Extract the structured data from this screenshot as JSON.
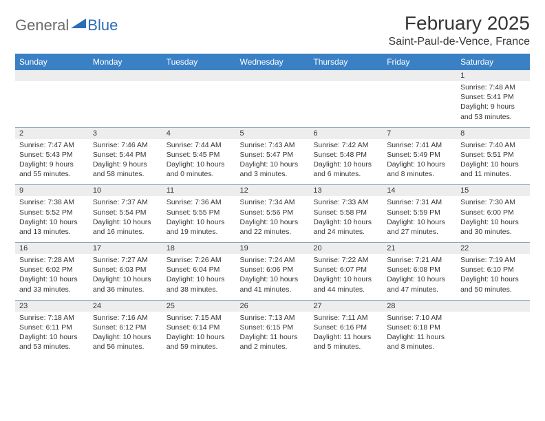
{
  "logo": {
    "general": "General",
    "blue": "Blue"
  },
  "title": "February 2025",
  "location": "Saint-Paul-de-Vence, France",
  "colors": {
    "header_bg": "#3a80c5",
    "header_text": "#ffffff",
    "dayhead_bg": "#ededed",
    "border": "#8aa5bd",
    "text": "#363636",
    "logo_gray": "#6b6b6b",
    "logo_blue": "#2a6db8"
  },
  "dayNames": [
    "Sunday",
    "Monday",
    "Tuesday",
    "Wednesday",
    "Thursday",
    "Friday",
    "Saturday"
  ],
  "weeks": [
    [
      {
        "n": "",
        "lines": []
      },
      {
        "n": "",
        "lines": []
      },
      {
        "n": "",
        "lines": []
      },
      {
        "n": "",
        "lines": []
      },
      {
        "n": "",
        "lines": []
      },
      {
        "n": "",
        "lines": []
      },
      {
        "n": "1",
        "lines": [
          "Sunrise: 7:48 AM",
          "Sunset: 5:41 PM",
          "Daylight: 9 hours and 53 minutes."
        ]
      }
    ],
    [
      {
        "n": "2",
        "lines": [
          "Sunrise: 7:47 AM",
          "Sunset: 5:43 PM",
          "Daylight: 9 hours and 55 minutes."
        ]
      },
      {
        "n": "3",
        "lines": [
          "Sunrise: 7:46 AM",
          "Sunset: 5:44 PM",
          "Daylight: 9 hours and 58 minutes."
        ]
      },
      {
        "n": "4",
        "lines": [
          "Sunrise: 7:44 AM",
          "Sunset: 5:45 PM",
          "Daylight: 10 hours and 0 minutes."
        ]
      },
      {
        "n": "5",
        "lines": [
          "Sunrise: 7:43 AM",
          "Sunset: 5:47 PM",
          "Daylight: 10 hours and 3 minutes."
        ]
      },
      {
        "n": "6",
        "lines": [
          "Sunrise: 7:42 AM",
          "Sunset: 5:48 PM",
          "Daylight: 10 hours and 6 minutes."
        ]
      },
      {
        "n": "7",
        "lines": [
          "Sunrise: 7:41 AM",
          "Sunset: 5:49 PM",
          "Daylight: 10 hours and 8 minutes."
        ]
      },
      {
        "n": "8",
        "lines": [
          "Sunrise: 7:40 AM",
          "Sunset: 5:51 PM",
          "Daylight: 10 hours and 11 minutes."
        ]
      }
    ],
    [
      {
        "n": "9",
        "lines": [
          "Sunrise: 7:38 AM",
          "Sunset: 5:52 PM",
          "Daylight: 10 hours and 13 minutes."
        ]
      },
      {
        "n": "10",
        "lines": [
          "Sunrise: 7:37 AM",
          "Sunset: 5:54 PM",
          "Daylight: 10 hours and 16 minutes."
        ]
      },
      {
        "n": "11",
        "lines": [
          "Sunrise: 7:36 AM",
          "Sunset: 5:55 PM",
          "Daylight: 10 hours and 19 minutes."
        ]
      },
      {
        "n": "12",
        "lines": [
          "Sunrise: 7:34 AM",
          "Sunset: 5:56 PM",
          "Daylight: 10 hours and 22 minutes."
        ]
      },
      {
        "n": "13",
        "lines": [
          "Sunrise: 7:33 AM",
          "Sunset: 5:58 PM",
          "Daylight: 10 hours and 24 minutes."
        ]
      },
      {
        "n": "14",
        "lines": [
          "Sunrise: 7:31 AM",
          "Sunset: 5:59 PM",
          "Daylight: 10 hours and 27 minutes."
        ]
      },
      {
        "n": "15",
        "lines": [
          "Sunrise: 7:30 AM",
          "Sunset: 6:00 PM",
          "Daylight: 10 hours and 30 minutes."
        ]
      }
    ],
    [
      {
        "n": "16",
        "lines": [
          "Sunrise: 7:28 AM",
          "Sunset: 6:02 PM",
          "Daylight: 10 hours and 33 minutes."
        ]
      },
      {
        "n": "17",
        "lines": [
          "Sunrise: 7:27 AM",
          "Sunset: 6:03 PM",
          "Daylight: 10 hours and 36 minutes."
        ]
      },
      {
        "n": "18",
        "lines": [
          "Sunrise: 7:26 AM",
          "Sunset: 6:04 PM",
          "Daylight: 10 hours and 38 minutes."
        ]
      },
      {
        "n": "19",
        "lines": [
          "Sunrise: 7:24 AM",
          "Sunset: 6:06 PM",
          "Daylight: 10 hours and 41 minutes."
        ]
      },
      {
        "n": "20",
        "lines": [
          "Sunrise: 7:22 AM",
          "Sunset: 6:07 PM",
          "Daylight: 10 hours and 44 minutes."
        ]
      },
      {
        "n": "21",
        "lines": [
          "Sunrise: 7:21 AM",
          "Sunset: 6:08 PM",
          "Daylight: 10 hours and 47 minutes."
        ]
      },
      {
        "n": "22",
        "lines": [
          "Sunrise: 7:19 AM",
          "Sunset: 6:10 PM",
          "Daylight: 10 hours and 50 minutes."
        ]
      }
    ],
    [
      {
        "n": "23",
        "lines": [
          "Sunrise: 7:18 AM",
          "Sunset: 6:11 PM",
          "Daylight: 10 hours and 53 minutes."
        ]
      },
      {
        "n": "24",
        "lines": [
          "Sunrise: 7:16 AM",
          "Sunset: 6:12 PM",
          "Daylight: 10 hours and 56 minutes."
        ]
      },
      {
        "n": "25",
        "lines": [
          "Sunrise: 7:15 AM",
          "Sunset: 6:14 PM",
          "Daylight: 10 hours and 59 minutes."
        ]
      },
      {
        "n": "26",
        "lines": [
          "Sunrise: 7:13 AM",
          "Sunset: 6:15 PM",
          "Daylight: 11 hours and 2 minutes."
        ]
      },
      {
        "n": "27",
        "lines": [
          "Sunrise: 7:11 AM",
          "Sunset: 6:16 PM",
          "Daylight: 11 hours and 5 minutes."
        ]
      },
      {
        "n": "28",
        "lines": [
          "Sunrise: 7:10 AM",
          "Sunset: 6:18 PM",
          "Daylight: 11 hours and 8 minutes."
        ]
      },
      {
        "n": "",
        "lines": []
      }
    ]
  ]
}
